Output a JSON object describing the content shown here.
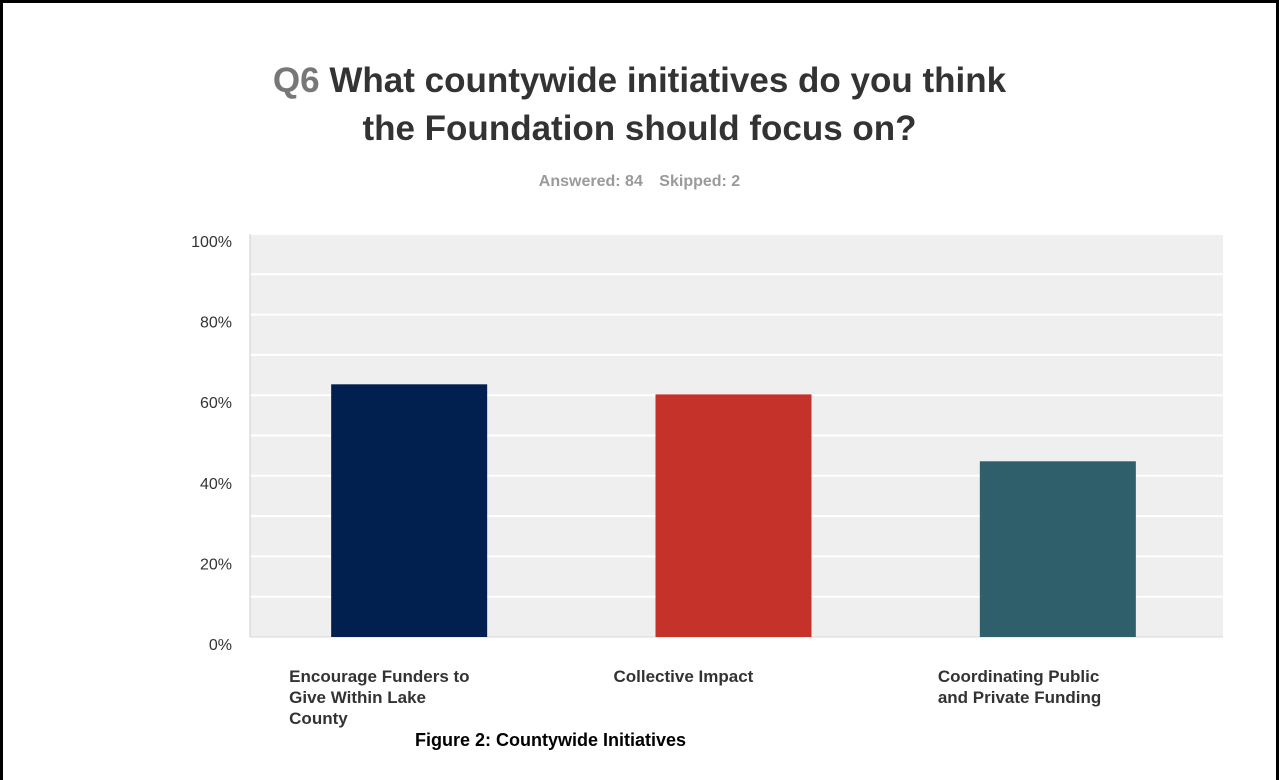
{
  "title": {
    "qnum": "Q6",
    "line1": "What countywide initiatives do you think",
    "line2": "the Foundation should focus on?"
  },
  "stats": {
    "answered": "Answered: 84",
    "skipped": "Skipped: 2"
  },
  "caption": "Figure 2: Countywide Initiatives",
  "chart_data": {
    "type": "bar",
    "categories": [
      [
        "Encourage Funders to",
        "Give Within Lake",
        "County"
      ],
      [
        "Collective Impact"
      ],
      [
        "Coordinating Public",
        "and Private Funding"
      ]
    ],
    "values": [
      62.7,
      60.2,
      43.6
    ],
    "colors": [
      "#011f4f",
      "#c4322a",
      "#2e5f6b"
    ],
    "ylim": [
      0,
      100
    ],
    "yticks": [
      0,
      20,
      40,
      60,
      80,
      100
    ],
    "ytick_labels": [
      "0%",
      "20%",
      "40%",
      "60%",
      "80%",
      "100%"
    ],
    "grid": true,
    "plot_background": "#efefef",
    "gridline_color": "#ffffff"
  }
}
